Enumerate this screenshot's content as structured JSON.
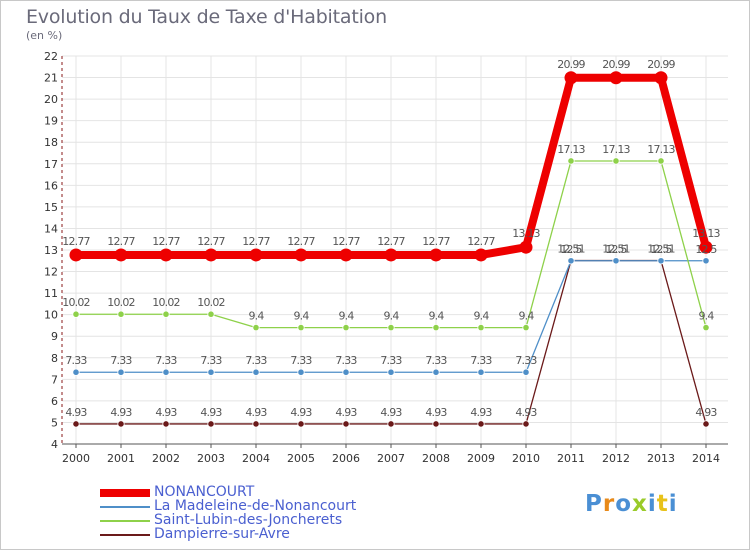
{
  "header": {
    "title": "Evolution du Taux de Taxe d'Habitation",
    "subtitle": "(en %)"
  },
  "chart_data": {
    "type": "line",
    "x": [
      2000,
      2001,
      2002,
      2003,
      2004,
      2005,
      2006,
      2007,
      2008,
      2009,
      2010,
      2011,
      2012,
      2013,
      2014
    ],
    "ylim": [
      4,
      22
    ],
    "yticks": [
      4,
      5,
      6,
      7,
      8,
      9,
      10,
      11,
      12,
      13,
      14,
      15,
      16,
      17,
      18,
      19,
      20,
      21,
      22
    ],
    "grid": true,
    "series": [
      {
        "name": "NONANCOURT",
        "color": "#ee0000",
        "values": [
          12.77,
          12.77,
          12.77,
          12.77,
          12.77,
          12.77,
          12.77,
          12.77,
          12.77,
          12.77,
          13.13,
          20.99,
          20.99,
          20.99,
          13.13
        ],
        "labels": [
          "12.77",
          "12.77",
          "12.77",
          "12.77",
          "12.77",
          "12.77",
          "12.77",
          "12.77",
          "12.77",
          "12.77",
          "13.13",
          "20.99",
          "20.99",
          "20.99",
          "13.13"
        ]
      },
      {
        "name": "La Madeleine-de-Nonancourt",
        "color": "#4f8fc8",
        "values": [
          7.33,
          7.33,
          7.33,
          7.33,
          7.33,
          7.33,
          7.33,
          7.33,
          7.33,
          7.33,
          7.33,
          12.5,
          12.5,
          12.5,
          12.5
        ],
        "labels": [
          "7.33",
          "7.33",
          "7.33",
          "7.33",
          "7.33",
          "7.33",
          "7.33",
          "7.33",
          "7.33",
          "7.33",
          "7.33",
          "12.5",
          "12.5",
          "12.5",
          "12.5"
        ]
      },
      {
        "name": "Saint-Lubin-des-Joncherets",
        "color": "#8ed14a",
        "values": [
          10.02,
          10.02,
          10.02,
          10.02,
          9.4,
          9.4,
          9.4,
          9.4,
          9.4,
          9.4,
          9.4,
          17.13,
          17.13,
          17.13,
          9.4
        ],
        "labels": [
          "10.02",
          "10.02",
          "10.02",
          "10.02",
          "9.4",
          "9.4",
          "9.4",
          "9.4",
          "9.4",
          "9.4",
          "9.4",
          "17.13",
          "17.13",
          "17.13",
          "9.4"
        ]
      },
      {
        "name": "Dampierre-sur-Avre",
        "color": "#6b1a1a",
        "values": [
          4.93,
          4.93,
          4.93,
          4.93,
          4.93,
          4.93,
          4.93,
          4.93,
          4.93,
          4.93,
          4.93,
          12.51,
          12.51,
          12.51,
          4.93
        ],
        "labels": [
          "4.93",
          "4.93",
          "4.93",
          "4.93",
          "4.93",
          "4.93",
          "4.93",
          "4.93",
          "4.93",
          "4.93",
          "4.93",
          "12.51",
          "12.51",
          "12.51",
          "4.93"
        ]
      }
    ]
  },
  "legend": [
    {
      "label": "NONANCOURT",
      "color": "#ee0000"
    },
    {
      "label": "La Madeleine-de-Nonancourt",
      "color": "#4f8fc8"
    },
    {
      "label": "Saint-Lubin-des-Joncherets",
      "color": "#8ed14a"
    },
    {
      "label": "Dampierre-sur-Avre",
      "color": "#6b1a1a"
    }
  ],
  "logo": {
    "text": "Proxiti",
    "colors": [
      "#4a8fd4",
      "#e88a1a",
      "#4a8fd4",
      "#9acb2a",
      "#4a8fd4",
      "#e8c21a",
      "#4a8fd4"
    ]
  }
}
